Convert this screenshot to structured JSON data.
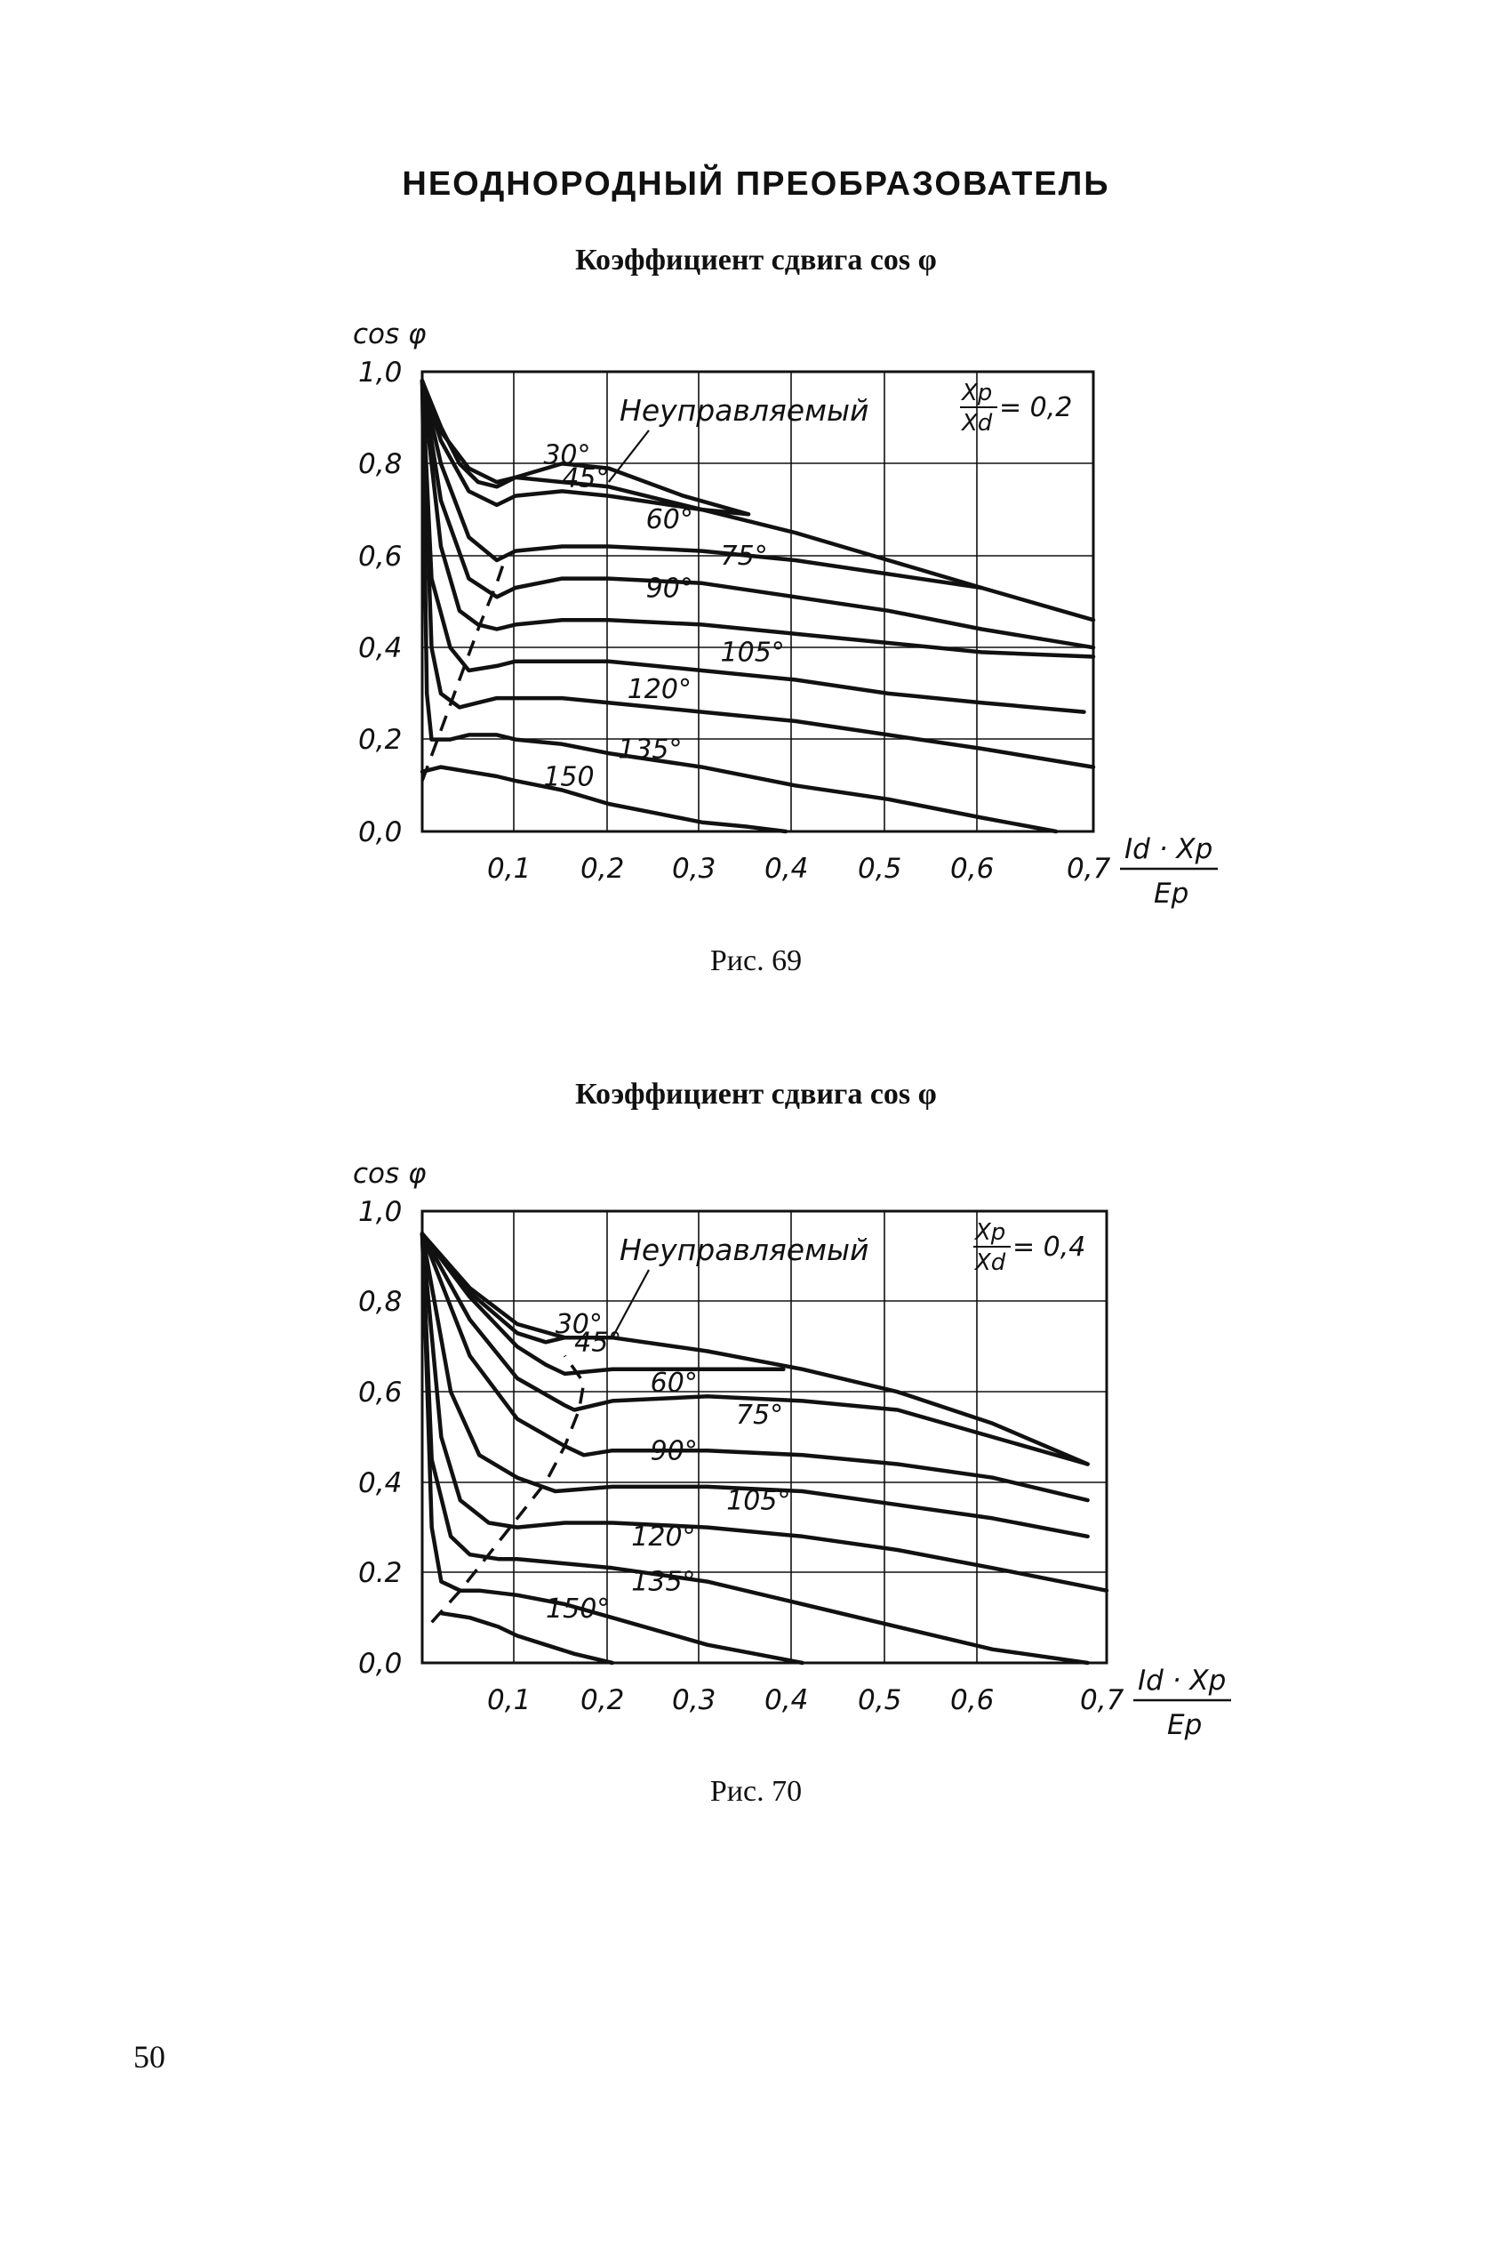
{
  "page": {
    "heading": "НЕОДНОРОДНЫЙ ПРЕОБРАЗОВАТЕЛЬ",
    "page_number": "50"
  },
  "figures": [
    {
      "title": "Коэффициент сдвига cos φ",
      "caption": "Рис. 69",
      "y_axis_label": "cos φ",
      "x_axis_label": {
        "numerator": "Id · Xp",
        "denominator": "Ep"
      },
      "param_label": {
        "numerator": "Xp",
        "denominator": "Xd",
        "value": "= 0,2"
      },
      "uncontrolled_label": "Неуправляемый",
      "y_ticks": [
        "1,0",
        "0,8",
        "0,6",
        "0,4",
        "0,2",
        "0,0"
      ],
      "x_ticks": [
        "0,1",
        "0,2",
        "0,3",
        "0,4",
        "0,5",
        "0,6",
        "0,7"
      ],
      "curve_labels": [
        "30°",
        "45°",
        "60°",
        "75°",
        "90°",
        "105°",
        "120°",
        "135°",
        "150"
      ]
    },
    {
      "title": "Коэффициент сдвига cos φ",
      "caption": "Рис. 70",
      "y_axis_label": "cos φ",
      "x_axis_label": {
        "numerator": "Id · Xp",
        "denominator": "Ep"
      },
      "param_label": {
        "numerator": "Xp",
        "denominator": "Xd",
        "value": "= 0,4"
      },
      "uncontrolled_label": "Неуправляемый",
      "y_ticks": [
        "1,0",
        "0,8",
        "0,6",
        "0,4",
        "0.2",
        "0,0"
      ],
      "x_ticks": [
        "0,1",
        "0,2",
        "0,3",
        "0,4",
        "0,5",
        "0,6",
        "0,7"
      ],
      "curve_labels": [
        "30°",
        "45°",
        "60°",
        "75°",
        "90°",
        "105°",
        "120°",
        "135°",
        "150°"
      ]
    }
  ],
  "chart_data": [
    {
      "type": "line",
      "title": "Коэффициент сдвига cos φ",
      "xlabel": "Id·Xp/Ep",
      "ylabel": "cos φ",
      "xlim": [
        0,
        0.72
      ],
      "ylim": [
        0,
        1.0
      ],
      "grid": true,
      "parameter": "Xp/Xd = 0,2",
      "series": [
        {
          "name": "Неуправляемый",
          "x": [
            0,
            0.02,
            0.05,
            0.08,
            0.1,
            0.2,
            0.3,
            0.4,
            0.5,
            0.6,
            0.72
          ],
          "y": [
            0.98,
            0.87,
            0.79,
            0.76,
            0.77,
            0.75,
            0.7,
            0.65,
            0.59,
            0.53,
            0.46
          ]
        },
        {
          "name": "30°",
          "x": [
            0,
            0.02,
            0.04,
            0.06,
            0.08,
            0.1,
            0.15,
            0.2,
            0.28,
            0.35
          ],
          "y": [
            0.98,
            0.88,
            0.8,
            0.76,
            0.75,
            0.77,
            0.8,
            0.79,
            0.73,
            0.69
          ]
        },
        {
          "name": "45°",
          "x": [
            0,
            0.02,
            0.05,
            0.08,
            0.1,
            0.15,
            0.2,
            0.3,
            0.35
          ],
          "y": [
            0.98,
            0.85,
            0.74,
            0.71,
            0.73,
            0.74,
            0.73,
            0.7,
            0.69
          ]
        },
        {
          "name": "60°",
          "x": [
            0,
            0.02,
            0.05,
            0.08,
            0.1,
            0.15,
            0.2,
            0.3,
            0.4,
            0.5,
            0.6
          ],
          "y": [
            0.98,
            0.8,
            0.64,
            0.59,
            0.61,
            0.62,
            0.62,
            0.61,
            0.59,
            0.56,
            0.53
          ]
        },
        {
          "name": "75°",
          "x": [
            0,
            0.02,
            0.05,
            0.08,
            0.1,
            0.15,
            0.2,
            0.3,
            0.4,
            0.5,
            0.6,
            0.72
          ],
          "y": [
            0.98,
            0.72,
            0.55,
            0.51,
            0.53,
            0.55,
            0.55,
            0.54,
            0.51,
            0.48,
            0.44,
            0.4
          ]
        },
        {
          "name": "90°",
          "x": [
            0,
            0.02,
            0.04,
            0.06,
            0.08,
            0.1,
            0.15,
            0.2,
            0.3,
            0.4,
            0.5,
            0.6,
            0.72
          ],
          "y": [
            0.98,
            0.62,
            0.48,
            0.45,
            0.44,
            0.45,
            0.46,
            0.46,
            0.45,
            0.43,
            0.41,
            0.39,
            0.38
          ]
        },
        {
          "name": "105°",
          "x": [
            0,
            0.01,
            0.03,
            0.05,
            0.08,
            0.1,
            0.15,
            0.2,
            0.3,
            0.4,
            0.5,
            0.6,
            0.71
          ],
          "y": [
            0.98,
            0.55,
            0.4,
            0.35,
            0.36,
            0.37,
            0.37,
            0.37,
            0.35,
            0.33,
            0.3,
            0.28,
            0.26
          ]
        },
        {
          "name": "120°",
          "x": [
            0,
            0.01,
            0.02,
            0.04,
            0.06,
            0.08,
            0.1,
            0.15,
            0.2,
            0.3,
            0.4,
            0.5,
            0.6,
            0.72
          ],
          "y": [
            0.98,
            0.4,
            0.3,
            0.27,
            0.28,
            0.29,
            0.29,
            0.29,
            0.28,
            0.26,
            0.24,
            0.21,
            0.18,
            0.14
          ]
        },
        {
          "name": "135°",
          "x": [
            0,
            0.005,
            0.01,
            0.03,
            0.05,
            0.08,
            0.1,
            0.15,
            0.2,
            0.3,
            0.4,
            0.5,
            0.6,
            0.68
          ],
          "y": [
            0.98,
            0.3,
            0.2,
            0.2,
            0.21,
            0.21,
            0.2,
            0.19,
            0.17,
            0.14,
            0.1,
            0.07,
            0.03,
            0.0
          ]
        },
        {
          "name": "150",
          "x": [
            0,
            0.02,
            0.05,
            0.08,
            0.1,
            0.15,
            0.2,
            0.25,
            0.3,
            0.35,
            0.39
          ],
          "y": [
            0.13,
            0.14,
            0.13,
            0.12,
            0.11,
            0.09,
            0.06,
            0.04,
            0.02,
            0.01,
            0.0
          ]
        },
        {
          "name": "граница",
          "style": "dashed",
          "x": [
            0.0,
            0.02,
            0.04,
            0.06,
            0.08,
            0.09
          ],
          "y": [
            0.11,
            0.22,
            0.33,
            0.44,
            0.54,
            0.6
          ]
        }
      ]
    },
    {
      "type": "line",
      "title": "Коэффициент сдвига cos φ",
      "xlabel": "Id·Xp/Ep",
      "ylabel": "cos φ",
      "xlim": [
        0,
        0.72
      ],
      "ylim": [
        0,
        1.0
      ],
      "grid": true,
      "parameter": "Xp/Xd = 0,4",
      "series": [
        {
          "name": "Неуправляемый",
          "x": [
            0,
            0.05,
            0.1,
            0.15,
            0.2,
            0.3,
            0.4,
            0.5,
            0.6,
            0.7
          ],
          "y": [
            0.95,
            0.83,
            0.75,
            0.72,
            0.72,
            0.69,
            0.65,
            0.6,
            0.53,
            0.44
          ]
        },
        {
          "name": "30°",
          "x": [
            0,
            0.05,
            0.1,
            0.13,
            0.15,
            0.18,
            0.2
          ],
          "y": [
            0.95,
            0.82,
            0.73,
            0.71,
            0.72,
            0.72,
            0.72
          ]
        },
        {
          "name": "45°",
          "x": [
            0,
            0.05,
            0.1,
            0.13,
            0.15,
            0.2,
            0.3,
            0.38
          ],
          "y": [
            0.95,
            0.81,
            0.7,
            0.66,
            0.64,
            0.65,
            0.65,
            0.65
          ]
        },
        {
          "name": "60°",
          "x": [
            0,
            0.05,
            0.1,
            0.15,
            0.16,
            0.2,
            0.3,
            0.4,
            0.5,
            0.6,
            0.7
          ],
          "y": [
            0.95,
            0.76,
            0.63,
            0.57,
            0.56,
            0.58,
            0.59,
            0.58,
            0.56,
            0.5,
            0.44
          ]
        },
        {
          "name": "75°",
          "x": [
            0,
            0.05,
            0.1,
            0.15,
            0.17,
            0.2,
            0.3,
            0.4,
            0.5,
            0.6,
            0.7
          ],
          "y": [
            0.95,
            0.68,
            0.54,
            0.48,
            0.46,
            0.47,
            0.47,
            0.46,
            0.44,
            0.41,
            0.36
          ]
        },
        {
          "name": "90°",
          "x": [
            0,
            0.03,
            0.06,
            0.1,
            0.14,
            0.2,
            0.3,
            0.4,
            0.5,
            0.6,
            0.7
          ],
          "y": [
            0.95,
            0.6,
            0.46,
            0.41,
            0.38,
            0.39,
            0.39,
            0.38,
            0.35,
            0.32,
            0.28
          ]
        },
        {
          "name": "105°",
          "x": [
            0,
            0.02,
            0.04,
            0.07,
            0.1,
            0.15,
            0.2,
            0.3,
            0.4,
            0.5,
            0.6,
            0.72
          ],
          "y": [
            0.95,
            0.5,
            0.36,
            0.31,
            0.3,
            0.31,
            0.31,
            0.3,
            0.28,
            0.25,
            0.21,
            0.16
          ]
        },
        {
          "name": "120°",
          "x": [
            0,
            0.01,
            0.03,
            0.05,
            0.08,
            0.1,
            0.15,
            0.2,
            0.3,
            0.4,
            0.5,
            0.6,
            0.7
          ],
          "y": [
            0.95,
            0.45,
            0.28,
            0.24,
            0.23,
            0.23,
            0.22,
            0.21,
            0.18,
            0.13,
            0.08,
            0.03,
            0.0
          ]
        },
        {
          "name": "135°",
          "x": [
            0,
            0.01,
            0.02,
            0.04,
            0.06,
            0.1,
            0.15,
            0.2,
            0.25,
            0.3,
            0.35,
            0.4
          ],
          "y": [
            0.95,
            0.3,
            0.18,
            0.16,
            0.16,
            0.15,
            0.13,
            0.1,
            0.07,
            0.04,
            0.02,
            0.0
          ]
        },
        {
          "name": "150°",
          "x": [
            0.02,
            0.05,
            0.08,
            0.1,
            0.13,
            0.16,
            0.2
          ],
          "y": [
            0.11,
            0.1,
            0.08,
            0.06,
            0.04,
            0.02,
            0.0
          ]
        },
        {
          "name": "граница",
          "style": "dashed",
          "x": [
            0.01,
            0.04,
            0.07,
            0.1,
            0.13,
            0.15,
            0.165,
            0.17,
            0.15
          ],
          "y": [
            0.09,
            0.16,
            0.24,
            0.32,
            0.4,
            0.48,
            0.56,
            0.62,
            0.68
          ]
        }
      ]
    }
  ]
}
